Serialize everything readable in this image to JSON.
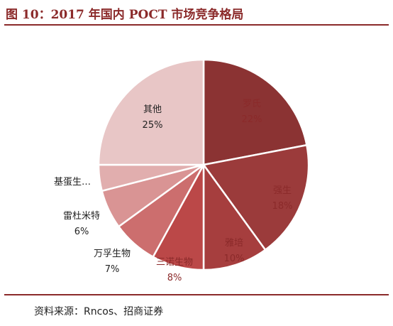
{
  "title": "图 10：2017 年国内 POCT 市场竞争格局",
  "source": "资料来源：Rncos、招商证券",
  "chart_data": {
    "type": "pie",
    "slices": [
      {
        "label": "罗氏",
        "value": 22,
        "value_label": "22%",
        "color": "#8b3333",
        "label_color": "#8b2a2a"
      },
      {
        "label": "强生",
        "value": 18,
        "value_label": "18%",
        "color": "#9b3b3b",
        "label_color": "#8b2a2a"
      },
      {
        "label": "雅培",
        "value": 10,
        "value_label": "10%",
        "color": "#a63e3e",
        "label_color": "#8b2a2a"
      },
      {
        "label": "三诺生物",
        "value": 8,
        "value_label": "8%",
        "color": "#bb4848",
        "label_color": "#8b2a2a"
      },
      {
        "label": "万孚生物",
        "value": 7,
        "value_label": "7%",
        "color": "#cc6e6e",
        "label_color": "#222222"
      },
      {
        "label": "雷杜米特",
        "value": 6,
        "value_label": "6%",
        "color": "#d99494",
        "label_color": "#222222"
      },
      {
        "label": "基蛋生…",
        "value": 4,
        "value_label": "",
        "color": "#e1aeae",
        "label_color": "#222222"
      },
      {
        "label": "其他",
        "value": 25,
        "value_label": "25%",
        "color": "#e8c6c6",
        "label_color": "#222222"
      }
    ]
  }
}
